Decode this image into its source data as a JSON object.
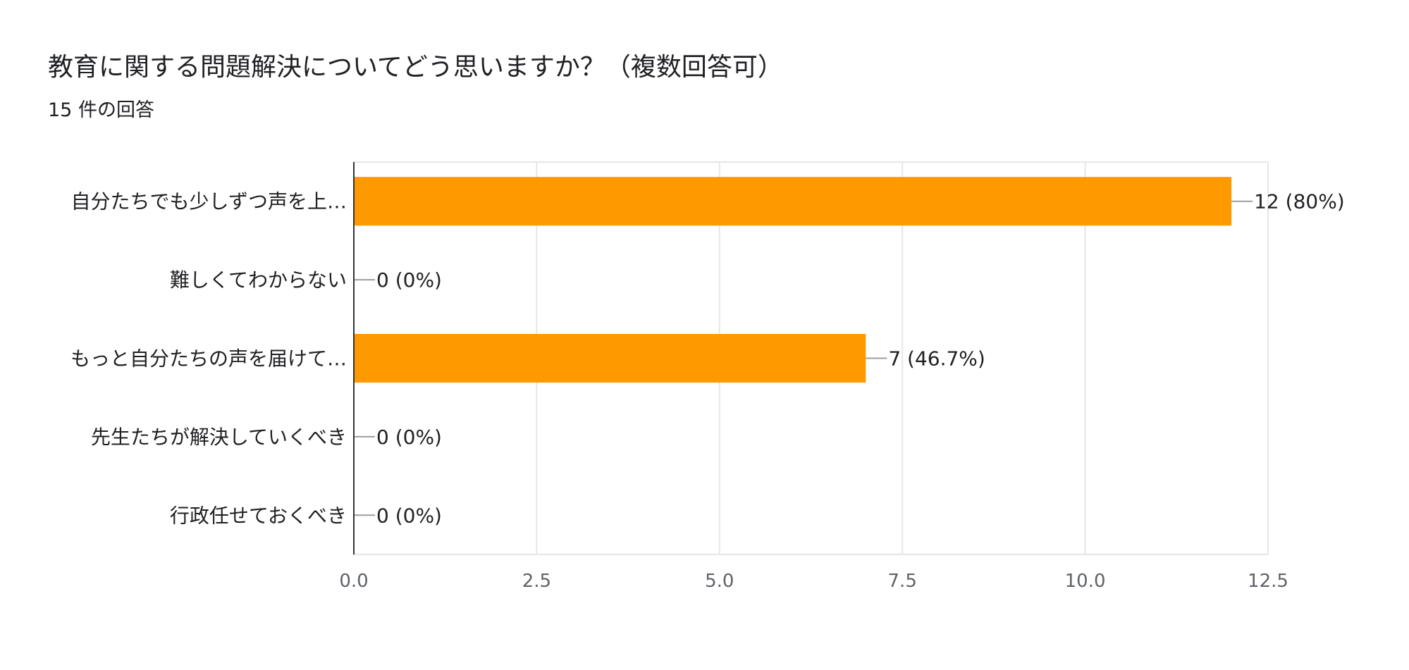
{
  "header": {
    "title": "教育に関する問題解決についてどう思いますか？（複数回答可）",
    "subtitle": "15 件の回答"
  },
  "colors": {
    "bar": "#ff9900",
    "grid": "#e6e6e6",
    "axis": "#333333",
    "leader": "#9e9e9e"
  },
  "chart_data": {
    "type": "bar",
    "orientation": "horizontal",
    "categories": [
      "自分たちでも少しずつ声を上…",
      "難しくてわからない",
      "もっと自分たちの声を届けて…",
      "先生たちが解決していくべき",
      "行政任せておくべき"
    ],
    "values": [
      12,
      0,
      7,
      0,
      0
    ],
    "data_labels": [
      "12 (80%)",
      "0 (0%)",
      "7 (46.7%)",
      "0 (0%)",
      "0 (0%)"
    ],
    "xlim": [
      0,
      12.5
    ],
    "xticks": [
      "0.0",
      "2.5",
      "5.0",
      "7.5",
      "10.0",
      "12.5"
    ],
    "grid": true
  }
}
